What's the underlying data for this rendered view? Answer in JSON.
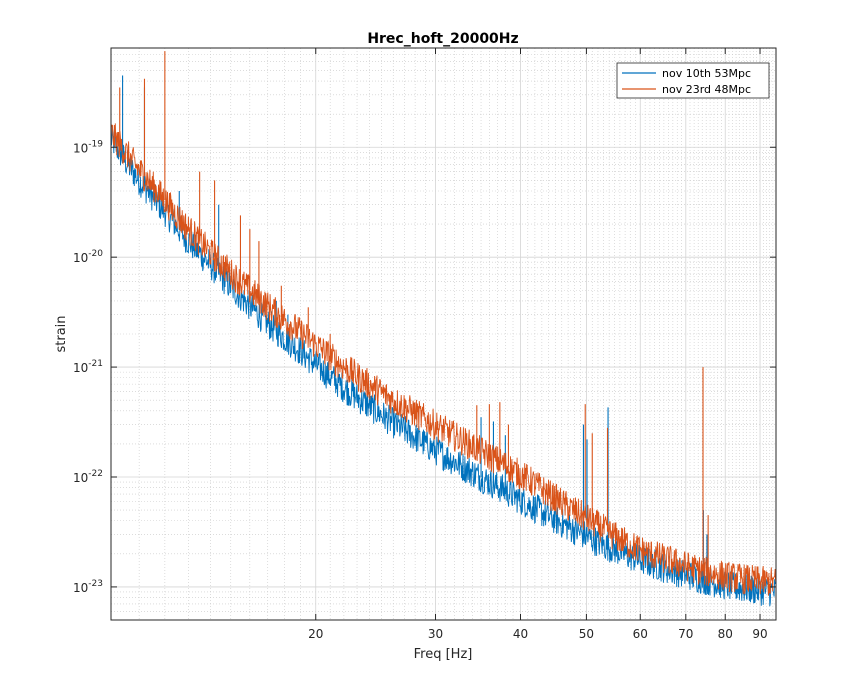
{
  "chart_data": {
    "type": "line",
    "title": "Hrec_hoft_20000Hz",
    "xlabel": "Freq [Hz]",
    "ylabel": "strain",
    "xscale": "log",
    "yscale": "log",
    "xlim": [
      10,
      95
    ],
    "ylim": [
      5e-24,
      8e-19
    ],
    "x_ticks": [
      20,
      30,
      40,
      50,
      60,
      70,
      80,
      90
    ],
    "x_tick_labels": [
      "20",
      "30",
      "40",
      "50",
      "60",
      "70",
      "80",
      "90"
    ],
    "y_ticks": [
      1e-23,
      1e-22,
      1e-21,
      1e-20,
      1e-19
    ],
    "y_tick_labels": [
      {
        "base": "10",
        "exp": "-23"
      },
      {
        "base": "10",
        "exp": "-22"
      },
      {
        "base": "10",
        "exp": "-21"
      },
      {
        "base": "10",
        "exp": "-20"
      },
      {
        "base": "10",
        "exp": "-19"
      }
    ],
    "grid": true,
    "minor_grid": true,
    "legend_position": "top-right",
    "series": [
      {
        "name": "nov 10th 53Mpc",
        "color": "#0072BD",
        "x": [
          10,
          10.5,
          11,
          11.5,
          12,
          12.5,
          13,
          14,
          15,
          16,
          17,
          18,
          19,
          20,
          21,
          22,
          24,
          26,
          28,
          30,
          32,
          34,
          36,
          38,
          40,
          42,
          44,
          46,
          48,
          50,
          52,
          55,
          58,
          62,
          66,
          70,
          74,
          78,
          82,
          86,
          90,
          95
        ],
        "values": [
          1.2e-19,
          7.5e-20,
          5e-20,
          3.6e-20,
          2.6e-20,
          1.9e-20,
          1.4e-20,
          8.5e-21,
          5.4e-21,
          3.6e-21,
          2.5e-21,
          1.85e-21,
          1.4e-21,
          1.05e-21,
          8.2e-22,
          6.5e-22,
          4.4e-22,
          3.1e-22,
          2.3e-22,
          1.75e-22,
          1.38e-22,
          1.1e-22,
          9e-23,
          7.5e-23,
          6.2e-23,
          5.2e-23,
          4.4e-23,
          3.8e-23,
          3.3e-23,
          2.9e-23,
          2.55e-23,
          2.2e-23,
          1.9e-23,
          1.65e-23,
          1.45e-23,
          1.3e-23,
          1.18e-23,
          1.08e-23,
          1e-23,
          9.6e-24,
          9.3e-24,
          9e-24
        ],
        "peaks": [
          {
            "x": 10.4,
            "y": 4.5e-19
          },
          {
            "x": 11.2,
            "y": 3.5e-19
          },
          {
            "x": 12.6,
            "y": 4e-20
          },
          {
            "x": 14.4,
            "y": 3e-20
          },
          {
            "x": 17.5,
            "y": 4e-21
          },
          {
            "x": 18.2,
            "y": 3e-21
          },
          {
            "x": 35.0,
            "y": 3.5e-22
          },
          {
            "x": 36.5,
            "y": 3.2e-22
          },
          {
            "x": 38.0,
            "y": 2.4e-22
          },
          {
            "x": 49.5,
            "y": 3e-22
          },
          {
            "x": 50.1,
            "y": 2.2e-22
          },
          {
            "x": 53.8,
            "y": 4.3e-22
          },
          {
            "x": 74.3,
            "y": 5e-23
          },
          {
            "x": 75.2,
            "y": 3e-23
          }
        ]
      },
      {
        "name": "nov 23rd 48Mpc",
        "color": "#D95319",
        "x": [
          10,
          10.5,
          11,
          11.5,
          12,
          12.5,
          13,
          14,
          15,
          16,
          17,
          18,
          19,
          20,
          21,
          22,
          24,
          26,
          28,
          30,
          32,
          34,
          36,
          38,
          40,
          42,
          44,
          46,
          48,
          50,
          52,
          55,
          58,
          62,
          66,
          70,
          74,
          78,
          82,
          86,
          90,
          95
        ],
        "values": [
          1.35e-19,
          9e-20,
          6.2e-20,
          4.5e-20,
          3.3e-20,
          2.4e-20,
          1.8e-20,
          1.1e-20,
          7.2e-21,
          5e-21,
          3.6e-21,
          2.7e-21,
          2.05e-21,
          1.6e-21,
          1.25e-21,
          1e-21,
          6.9e-22,
          5e-22,
          3.8e-22,
          2.95e-22,
          2.35e-22,
          1.9e-22,
          1.55e-22,
          1.28e-22,
          1.05e-22,
          8.6e-23,
          7e-23,
          5.8e-23,
          4.9e-23,
          4.2e-23,
          3.6e-23,
          2.9e-23,
          2.4e-23,
          2e-23,
          1.75e-23,
          1.55e-23,
          1.4e-23,
          1.3e-23,
          1.22e-23,
          1.17e-23,
          1.13e-23,
          1.1e-23
        ],
        "peaks": [
          {
            "x": 10.3,
            "y": 3.5e-19
          },
          {
            "x": 11.2,
            "y": 4.2e-19
          },
          {
            "x": 12.0,
            "y": 7.5e-19
          },
          {
            "x": 13.5,
            "y": 6e-20
          },
          {
            "x": 14.2,
            "y": 5e-20
          },
          {
            "x": 15.5,
            "y": 2.4e-20
          },
          {
            "x": 16.0,
            "y": 1.8e-20
          },
          {
            "x": 16.5,
            "y": 1.4e-20
          },
          {
            "x": 17.8,
            "y": 5.5e-21
          },
          {
            "x": 19.5,
            "y": 3.5e-21
          },
          {
            "x": 21.0,
            "y": 2e-21
          },
          {
            "x": 34.5,
            "y": 4.5e-22
          },
          {
            "x": 36.0,
            "y": 4.6e-22
          },
          {
            "x": 37.3,
            "y": 4.8e-22
          },
          {
            "x": 38.4,
            "y": 3e-22
          },
          {
            "x": 49.8,
            "y": 4.6e-22
          },
          {
            "x": 51.0,
            "y": 2.5e-22
          },
          {
            "x": 53.7,
            "y": 2.8e-22
          },
          {
            "x": 74.2,
            "y": 1e-21
          },
          {
            "x": 75.5,
            "y": 4.5e-23
          }
        ]
      }
    ]
  }
}
